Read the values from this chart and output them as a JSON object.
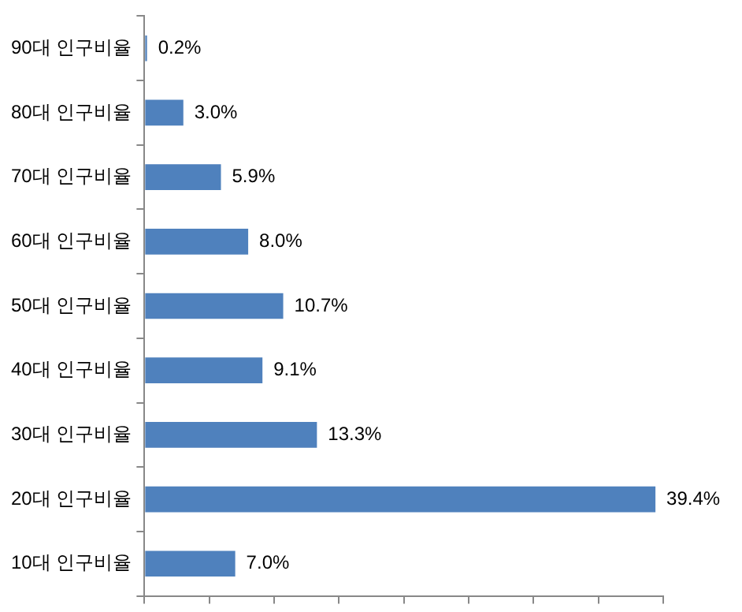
{
  "chart_data": {
    "type": "bar",
    "orientation": "horizontal",
    "categories": [
      "90대 인구비율",
      "80대 인구비율",
      "70대 인구비율",
      "60대 인구비율",
      "50대 인구비율",
      "40대 인구비율",
      "30대 인구비율",
      "20대 인구비율",
      "10대 인구비율"
    ],
    "values": [
      0.2,
      3.0,
      5.9,
      8.0,
      10.7,
      9.1,
      13.3,
      39.4,
      7.0
    ],
    "value_labels": [
      "0.2%",
      "3.0%",
      "5.9%",
      "8.0%",
      "10.7%",
      "9.1%",
      "13.3%",
      "39.4%",
      "7.0%"
    ],
    "color": "#4f81bd",
    "tick_labels": "y",
    "grid": false,
    "legend": false
  }
}
